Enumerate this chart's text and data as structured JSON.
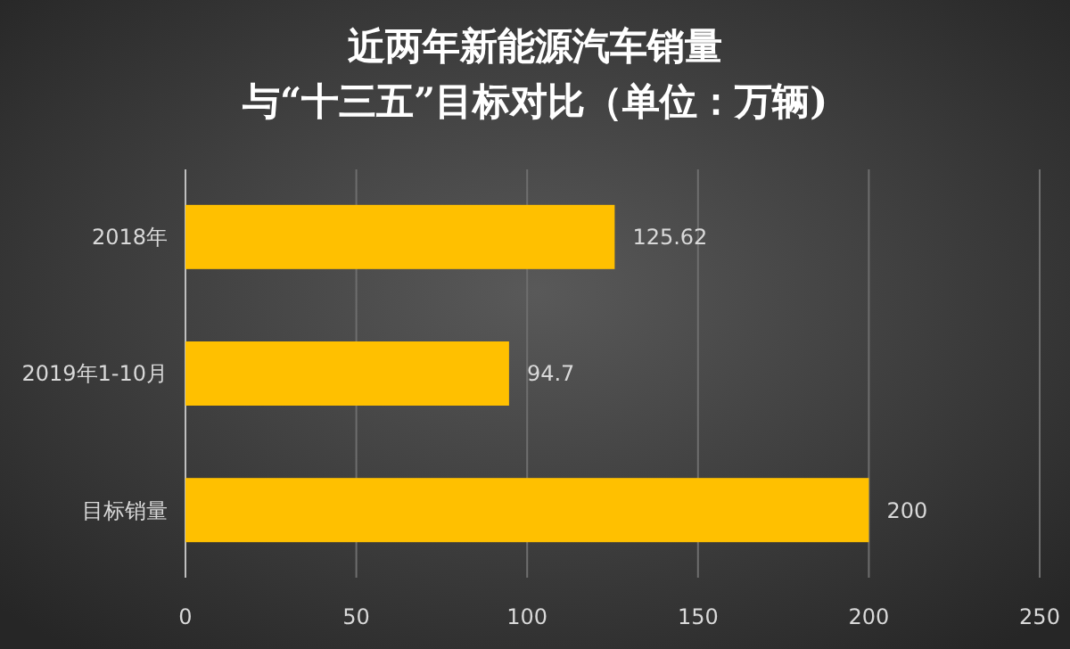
{
  "chart_data": {
    "type": "bar",
    "orientation": "horizontal",
    "title": "近两年新能源汽车销量",
    "subtitle": "与“十三五”目标对比（单位：万辆)",
    "categories": [
      "2018年",
      "2019年1-10月",
      "目标销量"
    ],
    "values": [
      125.62,
      94.7,
      200
    ],
    "color": "#ffc000",
    "xlim": [
      0,
      250
    ],
    "xticks": [
      0,
      50,
      100,
      150,
      200,
      250
    ],
    "grid": "x",
    "data_labels": true
  }
}
